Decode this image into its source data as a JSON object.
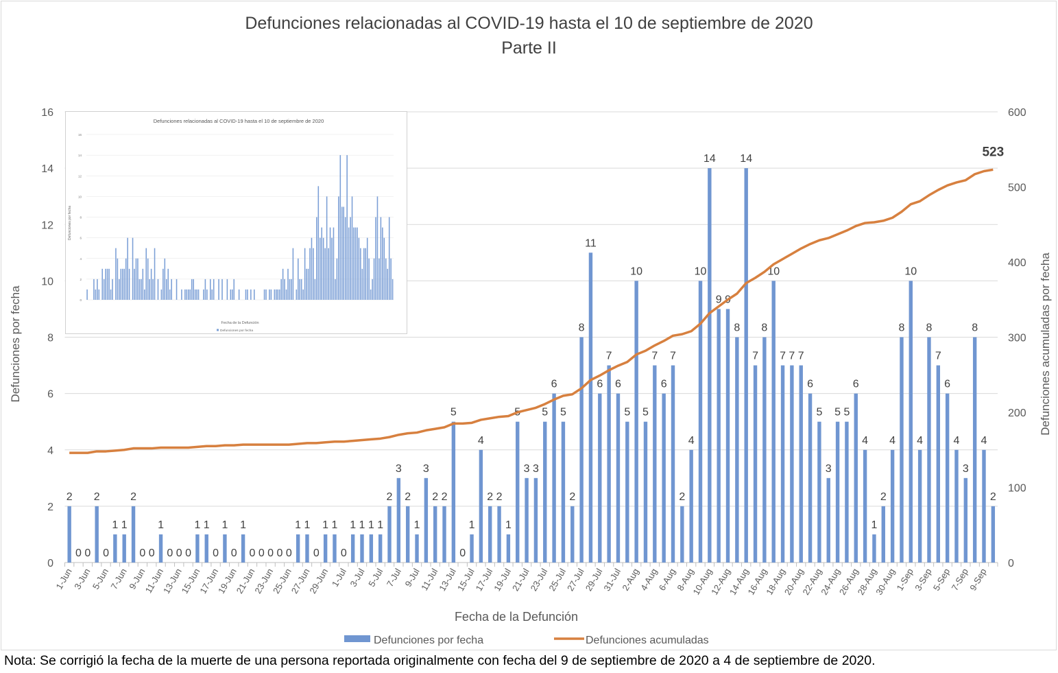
{
  "chart_data": {
    "type": "bar+line",
    "title": "Defunciones relacionadas al COVID-19 hasta el 10 de septiembre de 2020",
    "subtitle": "Parte II",
    "xlabel": "Fecha de la Defunción",
    "ylabel": "Defunciones por fecha",
    "y2label": "Defunciones acumuladas por fecha",
    "ylim": [
      0,
      16
    ],
    "yticks": [
      0,
      2,
      4,
      6,
      8,
      10,
      12,
      14,
      16
    ],
    "y2lim": [
      0,
      600
    ],
    "y2ticks": [
      0,
      100,
      200,
      300,
      400,
      500,
      600
    ],
    "grid": true,
    "legend_position": "bottom",
    "final_label": "523",
    "categories": [
      "1-Jun",
      "2-Jun",
      "3-Jun",
      "4-Jun",
      "5-Jun",
      "6-Jun",
      "7-Jun",
      "8-Jun",
      "9-Jun",
      "10-Jun",
      "11-Jun",
      "12-Jun",
      "13-Jun",
      "14-Jun",
      "15-Jun",
      "16-Jun",
      "17-Jun",
      "18-Jun",
      "19-Jun",
      "20-Jun",
      "21-Jun",
      "22-Jun",
      "23-Jun",
      "24-Jun",
      "25-Jun",
      "26-Jun",
      "27-Jun",
      "28-Jun",
      "29-Jun",
      "30-Jun",
      "1-Jul",
      "2-Jul",
      "3-Jul",
      "4-Jul",
      "5-Jul",
      "6-Jul",
      "7-Jul",
      "8-Jul",
      "9-Jul",
      "10-Jul",
      "11-Jul",
      "12-Jul",
      "13-Jul",
      "14-Jul",
      "15-Jul",
      "16-Jul",
      "17-Jul",
      "18-Jul",
      "19-Jul",
      "20-Jul",
      "21-Jul",
      "22-Jul",
      "23-Jul",
      "24-Jul",
      "25-Jul",
      "26-Jul",
      "27-Jul",
      "28-Jul",
      "29-Jul",
      "30-Jul",
      "31-Jul",
      "1-Aug",
      "2-Aug",
      "3-Aug",
      "4-Aug",
      "5-Aug",
      "6-Aug",
      "7-Aug",
      "8-Aug",
      "9-Aug",
      "10-Aug",
      "11-Aug",
      "12-Aug",
      "13-Aug",
      "14-Aug",
      "15-Aug",
      "16-Aug",
      "17-Aug",
      "18-Aug",
      "19-Aug",
      "20-Aug",
      "21-Aug",
      "22-Aug",
      "23-Aug",
      "24-Aug",
      "25-Aug",
      "26-Aug",
      "27-Aug",
      "28-Aug",
      "29-Aug",
      "30-Aug",
      "31-Aug",
      "1-Sep",
      "2-Sep",
      "3-Sep",
      "4-Sep",
      "5-Sep",
      "6-Sep",
      "7-Sep",
      "8-Sep",
      "9-Sep",
      "10-Sep"
    ],
    "series": [
      {
        "name": "Defunciones por fecha",
        "type": "bar",
        "axis": "left",
        "color": "#7096d1",
        "values": [
          2,
          0,
          0,
          2,
          0,
          1,
          1,
          2,
          0,
          0,
          1,
          0,
          0,
          0,
          1,
          1,
          0,
          1,
          0,
          1,
          0,
          0,
          0,
          0,
          0,
          1,
          1,
          0,
          1,
          1,
          0,
          1,
          1,
          1,
          1,
          2,
          3,
          2,
          1,
          3,
          2,
          2,
          5,
          0,
          1,
          4,
          2,
          2,
          1,
          5,
          3,
          3,
          5,
          6,
          5,
          2,
          8,
          11,
          6,
          7,
          6,
          5,
          10,
          5,
          7,
          6,
          7,
          2,
          4,
          10,
          14,
          9,
          9,
          8,
          14,
          7,
          8,
          10,
          7,
          7,
          7,
          6,
          5,
          3,
          5,
          5,
          6,
          4,
          1,
          2,
          4,
          8,
          10,
          4,
          8,
          7,
          6,
          4,
          3,
          8,
          4,
          2
        ]
      },
      {
        "name": "Defunciones acumuladas",
        "type": "line",
        "axis": "right",
        "color": "#d7803f",
        "values": [
          146,
          146,
          146,
          148,
          148,
          149,
          150,
          152,
          152,
          152,
          153,
          153,
          153,
          153,
          154,
          155,
          155,
          156,
          156,
          157,
          157,
          157,
          157,
          157,
          157,
          158,
          159,
          159,
          160,
          161,
          161,
          162,
          163,
          164,
          165,
          167,
          170,
          172,
          173,
          176,
          178,
          180,
          185,
          185,
          186,
          190,
          192,
          194,
          195,
          200,
          203,
          206,
          211,
          217,
          222,
          224,
          232,
          243,
          249,
          256,
          262,
          267,
          277,
          282,
          289,
          295,
          302,
          304,
          308,
          318,
          332,
          341,
          350,
          358,
          372,
          379,
          387,
          397,
          404,
          411,
          418,
          424,
          429,
          432,
          437,
          442,
          448,
          452,
          453,
          455,
          459,
          467,
          477,
          481,
          489,
          496,
          502,
          506,
          509,
          517,
          521,
          523
        ]
      }
    ]
  },
  "inset": {
    "title": "Defunciones relacionadas al COVID-19 hasta el 10 de septiembre de 2020",
    "ylabel": "Defunciones por fecha",
    "xlabel": "Fecha de la Defunción",
    "legend": "Defunciones por fecha",
    "yticks": [
      0,
      2,
      4,
      6,
      8,
      10,
      12,
      14,
      16
    ],
    "values": [
      1,
      0,
      0,
      0,
      2,
      1,
      2,
      1,
      0,
      3,
      2,
      3,
      3,
      3,
      1,
      2,
      0,
      5,
      4,
      2,
      3,
      3,
      3,
      4,
      6,
      3,
      0,
      6,
      3,
      4,
      4,
      2,
      2,
      3,
      1,
      5,
      4,
      2,
      3,
      2,
      5,
      0,
      2,
      0,
      1,
      3,
      4,
      2,
      3,
      1,
      2,
      0,
      0,
      2,
      0,
      0,
      1,
      0,
      1,
      1,
      1,
      1,
      2,
      2,
      1,
      1,
      1,
      0,
      0,
      1,
      2,
      1,
      0,
      2,
      1,
      2,
      0,
      0,
      2,
      0,
      2,
      0,
      0,
      2,
      0,
      1,
      1,
      2,
      0,
      0,
      1,
      0,
      0,
      0,
      1,
      1,
      0,
      1,
      0,
      1,
      0,
      0,
      0,
      0,
      0,
      1,
      1,
      0,
      1,
      1,
      0,
      1,
      1,
      1,
      1,
      2,
      3,
      2,
      1,
      3,
      2,
      2,
      5,
      0,
      1,
      4,
      2,
      2,
      1,
      5,
      3,
      3,
      5,
      6,
      5,
      2,
      8,
      11,
      6,
      7,
      6,
      5,
      10,
      5,
      7,
      6,
      7,
      2,
      4,
      10,
      14,
      9,
      9,
      8,
      14,
      7,
      8,
      10,
      7,
      7,
      7,
      6,
      5,
      3,
      5,
      5,
      6,
      4,
      1,
      2,
      4,
      8,
      10,
      4,
      8,
      7,
      6,
      4,
      3,
      8,
      4,
      2
    ]
  },
  "note": "Nota: Se corrigió la fecha de la muerte de una persona reportada originalmente con fecha del 9 de septiembre de 2020 a 4 de septiembre de 2020."
}
